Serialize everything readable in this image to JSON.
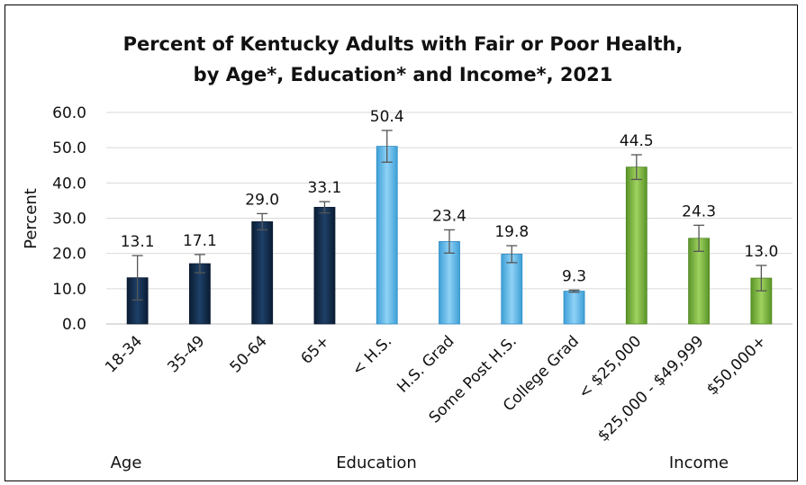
{
  "chart_data": {
    "type": "bar",
    "title_line1": "Percent of Kentucky Adults with Fair or Poor Health,",
    "title_line2": "by Age*, Education* and Income*, 2021",
    "ylabel": "Percent",
    "ylim": [
      0,
      60
    ],
    "yticks": [
      "0.0",
      "10.0",
      "20.0",
      "30.0",
      "40.0",
      "50.0",
      "60.0"
    ],
    "grid": true,
    "groups": [
      {
        "label": "Age",
        "color": "#142d4c",
        "start": 0,
        "end": 3
      },
      {
        "label": "Education",
        "color": "#5bb8ea",
        "start": 4,
        "end": 7
      },
      {
        "label": "Income",
        "color": "#7cb342",
        "start": 8,
        "end": 10
      }
    ],
    "categories": [
      "18-34",
      "35-49",
      "50-64",
      "65+",
      "< H.S.",
      "H.S. Grad",
      "Some Post H.S.",
      "College Grad",
      "< $25,000",
      "$25,000 - $49,999",
      "$50,000+"
    ],
    "values": [
      13.1,
      17.1,
      29.0,
      33.1,
      50.4,
      23.4,
      19.8,
      9.3,
      44.5,
      24.3,
      13.0
    ],
    "value_labels": [
      "13.1",
      "17.1",
      "29.0",
      "33.1",
      "50.4",
      "23.4",
      "19.8",
      "9.3",
      "44.5",
      "24.3",
      "13.0"
    ],
    "error_low": [
      6.8,
      14.5,
      26.7,
      31.5,
      45.9,
      20.1,
      17.4,
      9.0,
      41.0,
      20.6,
      9.4
    ],
    "error_high": [
      19.4,
      19.7,
      31.3,
      34.7,
      54.9,
      26.7,
      22.2,
      9.6,
      48.0,
      28.0,
      16.6
    ]
  }
}
